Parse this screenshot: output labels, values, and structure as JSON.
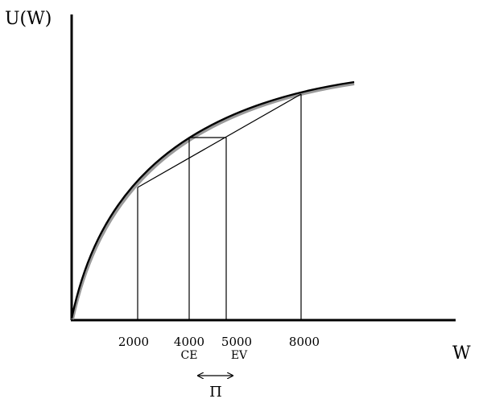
{
  "axes": {
    "y_label": "U(W)",
    "x_label": "W"
  },
  "wealth_labels": {
    "w_2000": "2000",
    "w_4000": "4000",
    "w_5000": "5000",
    "w_8000": "8000"
  },
  "annotations": {
    "ce": "CE",
    "ev": "EV",
    "risk_premium": "Π"
  }
}
